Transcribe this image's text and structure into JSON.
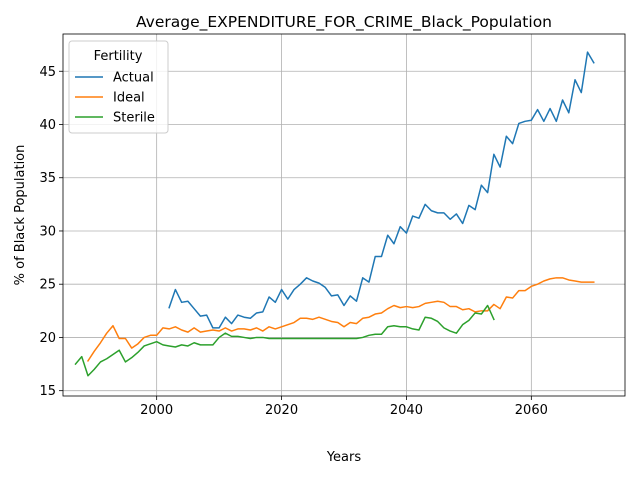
{
  "chart_data": {
    "type": "line",
    "title": "Average_EXPENDITURE_FOR_CRIME_Black_Population",
    "xlabel": "Years",
    "ylabel": "% of Black Population",
    "xlim": [
      1985,
      2075
    ],
    "ylim": [
      14.5,
      48.5
    ],
    "xticks": [
      2000,
      2020,
      2040,
      2060
    ],
    "yticks": [
      15,
      20,
      25,
      30,
      35,
      40,
      45
    ],
    "grid": true,
    "legend": {
      "title": "Fertility",
      "placement": "top-left"
    },
    "series": [
      {
        "name": "Actual",
        "color": "#1f77b4",
        "x": [
          2002,
          2003,
          2004,
          2005,
          2006,
          2007,
          2008,
          2009,
          2010,
          2011,
          2012,
          2013,
          2014,
          2015,
          2016,
          2017,
          2018,
          2019,
          2020,
          2021,
          2022,
          2023,
          2024,
          2025,
          2026,
          2027,
          2028,
          2029,
          2030,
          2031,
          2032,
          2033,
          2034,
          2035,
          2036,
          2037,
          2038,
          2039,
          2040,
          2041,
          2042,
          2043,
          2044,
          2045,
          2046,
          2047,
          2048,
          2049,
          2050,
          2051,
          2052,
          2053,
          2054,
          2055,
          2056,
          2057,
          2058,
          2059,
          2060,
          2061,
          2062,
          2063,
          2064,
          2065,
          2066,
          2067,
          2068,
          2069,
          2070
        ],
        "y": [
          22.8,
          24.5,
          23.3,
          23.4,
          22.7,
          22.0,
          22.1,
          20.9,
          20.9,
          21.9,
          21.3,
          22.1,
          21.9,
          21.8,
          22.3,
          22.4,
          23.8,
          23.3,
          24.5,
          23.6,
          24.5,
          25.0,
          25.6,
          25.3,
          25.1,
          24.7,
          23.9,
          24.0,
          23.0,
          23.9,
          23.4,
          25.6,
          25.2,
          27.6,
          27.6,
          29.6,
          28.8,
          30.4,
          29.8,
          31.4,
          31.2,
          32.5,
          31.9,
          31.7,
          31.7,
          31.1,
          31.6,
          30.7,
          32.4,
          32.0,
          34.3,
          33.6,
          37.2,
          36.0,
          38.9,
          38.2,
          40.1,
          40.3,
          40.4,
          41.4,
          40.3,
          41.5,
          40.3,
          42.3,
          41.1,
          44.2,
          43.0,
          46.8,
          45.8
        ]
      },
      {
        "name": "Ideal",
        "color": "#ff7f0e",
        "x": [
          1989,
          1990,
          1991,
          1992,
          1993,
          1994,
          1995,
          1996,
          1997,
          1998,
          1999,
          2000,
          2001,
          2002,
          2003,
          2004,
          2005,
          2006,
          2007,
          2008,
          2009,
          2010,
          2011,
          2012,
          2013,
          2014,
          2015,
          2016,
          2017,
          2018,
          2019,
          2020,
          2021,
          2022,
          2023,
          2024,
          2025,
          2026,
          2027,
          2028,
          2029,
          2030,
          2031,
          2032,
          2033,
          2034,
          2035,
          2036,
          2037,
          2038,
          2039,
          2040,
          2041,
          2042,
          2043,
          2044,
          2045,
          2046,
          2047,
          2048,
          2049,
          2050,
          2051,
          2052,
          2053,
          2054,
          2055,
          2056,
          2057,
          2058,
          2059,
          2060,
          2061,
          2062,
          2063,
          2064,
          2065,
          2066,
          2067,
          2068,
          2069,
          2070
        ],
        "y": [
          17.8,
          18.7,
          19.5,
          20.4,
          21.1,
          19.9,
          19.9,
          19.0,
          19.4,
          20.0,
          20.2,
          20.2,
          20.9,
          20.8,
          21.0,
          20.7,
          20.5,
          20.9,
          20.5,
          20.6,
          20.7,
          20.6,
          20.9,
          20.6,
          20.8,
          20.8,
          20.7,
          20.9,
          20.6,
          21.0,
          20.8,
          21.0,
          21.2,
          21.4,
          21.8,
          21.8,
          21.7,
          21.9,
          21.7,
          21.5,
          21.4,
          21.0,
          21.4,
          21.3,
          21.8,
          21.9,
          22.2,
          22.3,
          22.7,
          23.0,
          22.8,
          22.9,
          22.8,
          22.9,
          23.2,
          23.3,
          23.4,
          23.3,
          22.9,
          22.9,
          22.6,
          22.7,
          22.4,
          22.5,
          22.5,
          23.1,
          22.7,
          23.8,
          23.7,
          24.4,
          24.4,
          24.8,
          25.0,
          25.3,
          25.5,
          25.6,
          25.6,
          25.4,
          25.3,
          25.2,
          25.2,
          25.2
        ]
      },
      {
        "name": "Sterile",
        "color": "#2ca02c",
        "x": [
          1987,
          1988,
          1989,
          1990,
          1991,
          1992,
          1993,
          1994,
          1995,
          1996,
          1997,
          1998,
          1999,
          2000,
          2001,
          2002,
          2003,
          2004,
          2005,
          2006,
          2007,
          2008,
          2009,
          2010,
          2011,
          2012,
          2013,
          2014,
          2015,
          2016,
          2017,
          2018,
          2019,
          2020,
          2021,
          2022,
          2023,
          2024,
          2025,
          2026,
          2027,
          2028,
          2029,
          2030,
          2031,
          2032,
          2033,
          2034,
          2035,
          2036,
          2037,
          2038,
          2039,
          2040,
          2041,
          2042,
          2043,
          2044,
          2045,
          2046,
          2047,
          2048,
          2049,
          2050,
          2051,
          2052,
          2053,
          2054
        ],
        "y": [
          17.5,
          18.2,
          16.4,
          17.0,
          17.7,
          18.0,
          18.4,
          18.8,
          17.7,
          18.1,
          18.6,
          19.2,
          19.4,
          19.6,
          19.3,
          19.2,
          19.1,
          19.3,
          19.2,
          19.5,
          19.3,
          19.3,
          19.3,
          20.0,
          20.4,
          20.1,
          20.1,
          20.0,
          19.9,
          20.0,
          20.0,
          19.9,
          19.9,
          19.9,
          19.9,
          19.9,
          19.9,
          19.9,
          19.9,
          19.9,
          19.9,
          19.9,
          19.9,
          19.9,
          19.9,
          19.9,
          20.0,
          20.2,
          20.3,
          20.3,
          21.0,
          21.1,
          21.0,
          21.0,
          20.8,
          20.7,
          21.9,
          21.8,
          21.5,
          20.9,
          20.6,
          20.4,
          21.2,
          21.6,
          22.3,
          22.2,
          23.0,
          21.7
        ]
      }
    ]
  }
}
